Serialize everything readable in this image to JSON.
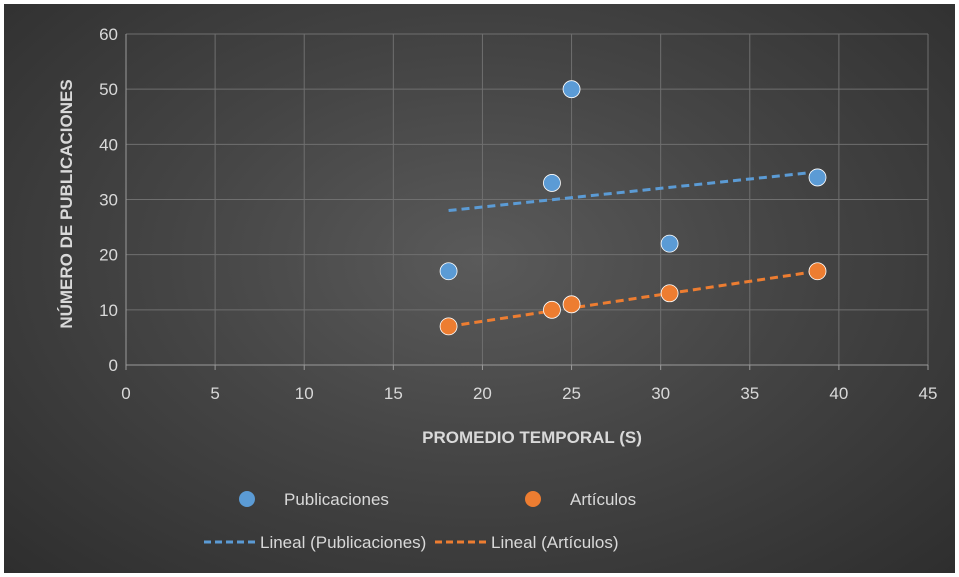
{
  "chart_data": {
    "type": "scatter",
    "xlabel": "PROMEDIO TEMPORAL (S)",
    "ylabel": "NÚMERO DE PUBLICACIONES",
    "xlim": [
      0,
      45
    ],
    "ylim": [
      0,
      60
    ],
    "xticks": [
      "0",
      "5",
      "10",
      "15",
      "20",
      "25",
      "30",
      "35",
      "40",
      "45"
    ],
    "yticks": [
      "0",
      "10",
      "20",
      "30",
      "40",
      "50",
      "60"
    ],
    "grid": true,
    "legend_position": "bottom",
    "series": [
      {
        "name": "Publicaciones",
        "color": "#5b9bd5",
        "points": [
          [
            18.1,
            17
          ],
          [
            23.9,
            33
          ],
          [
            25.0,
            50
          ],
          [
            30.5,
            22
          ],
          [
            38.8,
            34
          ]
        ]
      },
      {
        "name": "Artículos",
        "color": "#ed7d31",
        "points": [
          [
            18.1,
            7
          ],
          [
            23.9,
            10
          ],
          [
            25.0,
            11
          ],
          [
            30.5,
            13
          ],
          [
            38.8,
            17
          ]
        ]
      }
    ],
    "trendlines": [
      {
        "name": "Lineal (Publicaciones)",
        "color": "#5b9bd5",
        "style": "dashed",
        "from": [
          18.1,
          28
        ],
        "to": [
          38.8,
          35
        ]
      },
      {
        "name": "Lineal (Artículos)",
        "color": "#ed7d31",
        "style": "dashed",
        "from": [
          18.1,
          7
        ],
        "to": [
          38.8,
          17
        ]
      }
    ]
  }
}
